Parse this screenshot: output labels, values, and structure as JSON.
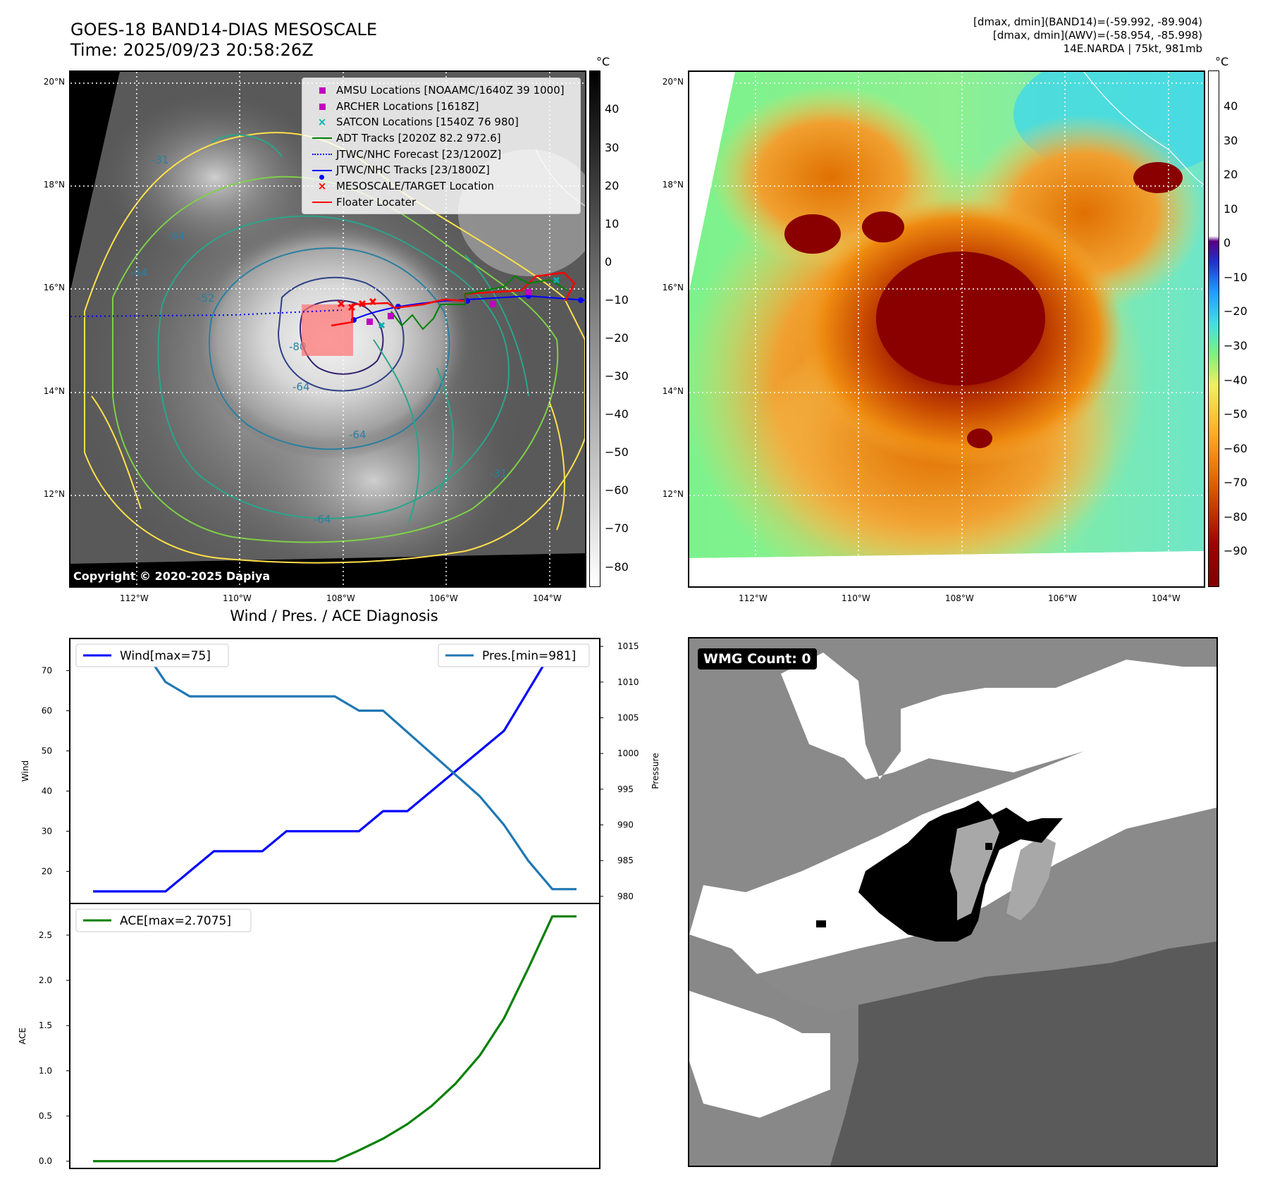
{
  "header": {
    "title_line1": "GOES-18 BAND14-DIAS MESOSCALE",
    "title_line2": "Time: 2025/09/23 20:58:26Z",
    "info_line1": "[dmax, dmin](BAND14)=(-59.992, -89.904)",
    "info_line2": "[dmax, dmin](AWV)=(-58.954, -85.998)",
    "info_line3": "14E.NARDA | 75kt, 981mb"
  },
  "map": {
    "lat_labels": [
      "20°N",
      "18°N",
      "16°N",
      "14°N",
      "12°N"
    ],
    "lon_labels": [
      "112°W",
      "110°W",
      "108°W",
      "106°W",
      "104°W"
    ],
    "copyright": "Copyright © 2020-2025 Dapiya",
    "contour_labels": [
      "-64",
      "-64",
      "-64",
      "-64",
      "-80",
      "-64",
      "-52",
      "-31",
      "-31"
    ],
    "legend": [
      {
        "label": "AMSU Locations [NOAAMC/1640Z 39 1000]",
        "marker": "square",
        "color": "#c000c0"
      },
      {
        "label": "ARCHER Locations [1618Z]",
        "marker": "square",
        "color": "#c000c0"
      },
      {
        "label": "SATCON Locations [1540Z 76 980]",
        "marker": "x",
        "color": "#00b0b0"
      },
      {
        "label": "ADT Tracks [2020Z 82.2 972.6]",
        "marker": "line",
        "color": "#008000"
      },
      {
        "label": "JTWC/NHC Forecast [23/1200Z]",
        "marker": "dotted",
        "color": "#0000ff"
      },
      {
        "label": "JTWC/NHC Tracks [23/1800Z]",
        "marker": "line-dot",
        "color": "#0000ff"
      },
      {
        "label": "MESOSCALE/TARGET Location",
        "marker": "x",
        "color": "#ff0000"
      },
      {
        "label": "Floater Locater",
        "marker": "line",
        "color": "#ff0000"
      }
    ]
  },
  "colorbar_gray": {
    "unit": "°C",
    "ticks": [
      "40",
      "30",
      "20",
      "10",
      "0",
      "−10",
      "−20",
      "−30",
      "−40",
      "−50",
      "−60",
      "−70",
      "−80"
    ]
  },
  "colorbar_color": {
    "unit": "°C",
    "ticks": [
      "40",
      "30",
      "20",
      "10",
      "0",
      "−10",
      "−20",
      "−30",
      "−40",
      "−50",
      "−60",
      "−70",
      "−80",
      "−90"
    ]
  },
  "wmg": {
    "label": "WMG Count: 0"
  },
  "chart_data": [
    {
      "type": "line",
      "title": "Wind / Pres. / ACE Diagnosis",
      "ylabel": "Wind",
      "ylabel_right": "Pressure",
      "ylim": [
        12,
        78
      ],
      "y_ticks": [
        20,
        30,
        40,
        50,
        60,
        70
      ],
      "ylim_right": [
        979,
        1016.1
      ],
      "y_ticks_right": [
        980,
        985,
        990,
        995,
        1000,
        1005,
        1010,
        1015
      ],
      "x": [
        0,
        1,
        2,
        3,
        4,
        5,
        6,
        7,
        8,
        9,
        10,
        11,
        12,
        13,
        14,
        15,
        16,
        17,
        18,
        19,
        20
      ],
      "series": [
        {
          "name": "Wind[max=75]",
          "axis": "left",
          "color": "#0000ff",
          "values": [
            15,
            15,
            15,
            15,
            20,
            25,
            25,
            25,
            30,
            30,
            30,
            30,
            35,
            35,
            40,
            45,
            50,
            55,
            65,
            75,
            75
          ]
        },
        {
          "name": "Pres.[min=981]",
          "axis": "right",
          "color": "#1f77b4",
          "values": [
            1015,
            1015,
            1015,
            1010,
            1008,
            1008,
            1008,
            1008,
            1008,
            1008,
            1008,
            1006,
            1006,
            1003,
            1000,
            997,
            994,
            990,
            985,
            981,
            981
          ]
        }
      ]
    },
    {
      "type": "line",
      "ylabel": "ACE",
      "ylim": [
        -0.08,
        2.85
      ],
      "y_ticks": [
        "0.0",
        "0.5",
        "1.0",
        "1.5",
        "2.0",
        "2.5"
      ],
      "x": [
        0,
        1,
        2,
        3,
        4,
        5,
        6,
        7,
        8,
        9,
        10,
        11,
        12,
        13,
        14,
        15,
        16,
        17,
        18,
        19,
        20
      ],
      "series": [
        {
          "name": "ACE[max=2.7075]",
          "color": "#008000",
          "values": [
            0,
            0,
            0,
            0,
            0,
            0,
            0,
            0,
            0,
            0,
            0,
            0.12,
            0.25,
            0.41,
            0.61,
            0.86,
            1.17,
            1.58,
            2.13,
            2.7075,
            2.7075
          ]
        }
      ]
    }
  ]
}
